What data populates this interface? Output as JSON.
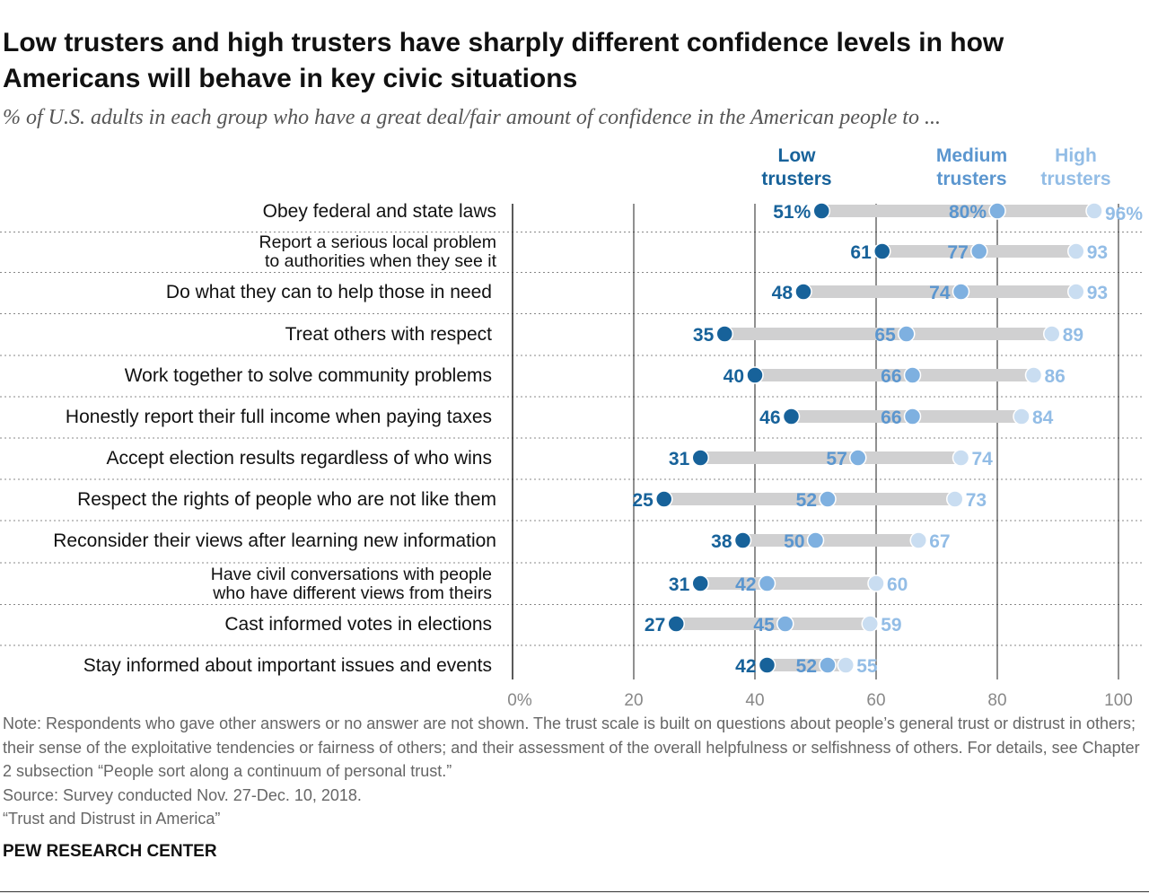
{
  "chart_data": {
    "type": "dot",
    "title": "Low trusters and high trusters have sharply different confidence levels in how Americans will behave in key civic situations",
    "subtitle": "% of U.S. adults in each group who have a great deal/fair amount of confidence in the American people to ...",
    "xlim": [
      0,
      100
    ],
    "ticks": [
      "0%",
      "20",
      "40",
      "60",
      "80",
      "100"
    ],
    "grid": true,
    "categories": [
      [
        "Obey federal and state laws"
      ],
      [
        "Report a serious local problem",
        "to authorities when they see it"
      ],
      [
        "Do what they can to help those in need"
      ],
      [
        "Treat others with respect"
      ],
      [
        "Work together to solve community problems"
      ],
      [
        "Honestly report their full income when paying taxes"
      ],
      [
        "Accept election results regardless of who wins"
      ],
      [
        "Respect the rights of people who are not like them"
      ],
      [
        "Reconsider their views after learning new information"
      ],
      [
        "Have civil conversations with people",
        "who have different views from theirs"
      ],
      [
        "Cast informed votes in elections"
      ],
      [
        "Stay informed about important issues and events"
      ]
    ],
    "series": [
      {
        "name": "Low trusters",
        "color": "#17629a",
        "label_color": "#17629a",
        "values": [
          51,
          61,
          48,
          35,
          40,
          46,
          31,
          25,
          38,
          31,
          27,
          42
        ]
      },
      {
        "name": "Medium trusters",
        "color": "#7eb0e0",
        "label_color": "#5b96cf",
        "values": [
          80,
          77,
          74,
          65,
          66,
          66,
          57,
          52,
          50,
          42,
          45,
          52
        ]
      },
      {
        "name": "High trusters",
        "color": "#c9ddf1",
        "label_color": "#93bde6",
        "values": [
          96,
          93,
          93,
          89,
          86,
          84,
          74,
          73,
          67,
          60,
          59,
          55
        ]
      }
    ]
  },
  "legend": {
    "low": [
      "Low",
      "trusters"
    ],
    "medium": [
      "Medium",
      "trusters"
    ],
    "high": [
      "High",
      "trusters"
    ]
  },
  "notes": [
    "Note: Respondents who gave other answers or no answer are not shown. The trust scale is built on questions about people’s general trust or distrust in others; their sense of the exploitative tendencies or fairness of others; and their assessment of the overall helpfulness or selfishness of others. For details, see Chapter 2 subsection “People sort along a continuum of personal trust.”",
    "Source: Survey conducted Nov. 27-Dec. 10, 2018.",
    "“Trust and Distrust in America”"
  ],
  "brand": "PEW RESEARCH CENTER"
}
